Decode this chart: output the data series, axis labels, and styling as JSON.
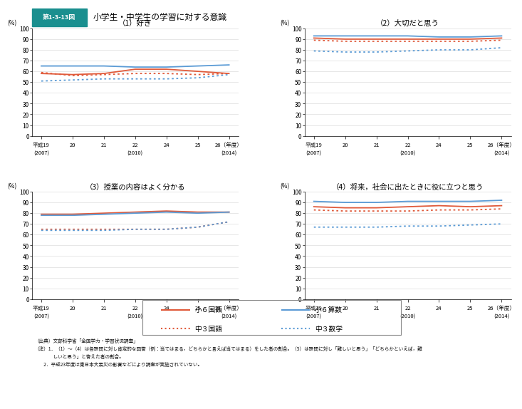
{
  "header_bg": "#1A8F8F",
  "header_text": "第1-3-13図",
  "main_title": "小学生・中学生の学習に対する意識",
  "x_values": [
    0,
    1,
    2,
    3,
    4,
    5,
    6
  ],
  "x_top_labels": [
    "平成19",
    "20",
    "21",
    "22",
    "24",
    "25",
    "26（年度）"
  ],
  "x_bot_labels": [
    "(2007)",
    "",
    "",
    "(2010)",
    "",
    "",
    "(2014)"
  ],
  "subplots": [
    {
      "title": "（1）好き",
      "ylim": [
        0,
        100
      ],
      "yticks": [
        0,
        10,
        20,
        30,
        40,
        50,
        60,
        70,
        80,
        90,
        100
      ],
      "series": {
        "小6国語": [
          58,
          57,
          58,
          62,
          62,
          60,
          58
        ],
        "小6算数": [
          65,
          65,
          65,
          64,
          64,
          65,
          66
        ],
        "中3国語": [
          59,
          56,
          57,
          58,
          58,
          57,
          58
        ],
        "中3数学": [
          51,
          52,
          53,
          53,
          53,
          54,
          57
        ]
      }
    },
    {
      "title": "（2）大切だと思う",
      "ylim": [
        0,
        100
      ],
      "yticks": [
        0,
        10,
        20,
        30,
        40,
        50,
        60,
        70,
        80,
        90,
        100
      ],
      "series": {
        "小6国語": [
          91,
          90,
          90,
          90,
          90,
          90,
          91
        ],
        "小6算数": [
          93,
          93,
          93,
          93,
          92,
          92,
          93
        ],
        "中3国語": [
          89,
          88,
          88,
          88,
          88,
          88,
          89
        ],
        "中3数学": [
          79,
          78,
          78,
          79,
          80,
          80,
          82
        ]
      }
    },
    {
      "title": "（3）授業の内容はよく分かる",
      "ylim": [
        0,
        100
      ],
      "yticks": [
        0,
        10,
        20,
        30,
        40,
        50,
        60,
        70,
        80,
        90,
        100
      ],
      "series": {
        "小6国語": [
          79,
          79,
          80,
          81,
          82,
          81,
          81
        ],
        "小6算数": [
          78,
          78,
          79,
          80,
          81,
          80,
          81
        ],
        "中3国語": [
          65,
          65,
          65,
          65,
          65,
          67,
          72
        ],
        "中3数学": [
          64,
          64,
          64,
          65,
          65,
          67,
          72
        ]
      }
    },
    {
      "title": "（4）将来，社会に出たときに役に立つと思う",
      "ylim": [
        0,
        100
      ],
      "yticks": [
        0,
        10,
        20,
        30,
        40,
        50,
        60,
        70,
        80,
        90,
        100
      ],
      "series": {
        "小6国語": [
          86,
          85,
          85,
          86,
          87,
          86,
          87
        ],
        "小6算数": [
          91,
          90,
          90,
          91,
          91,
          91,
          92
        ],
        "中3国語": [
          83,
          82,
          82,
          82,
          83,
          83,
          84
        ],
        "中3数学": [
          67,
          67,
          67,
          68,
          68,
          69,
          70
        ]
      }
    }
  ],
  "colors": {
    "小6国語": "#E05A3A",
    "小6算数": "#5B9BD5",
    "中3国語": "#E05A3A",
    "中3数学": "#5B9BD5"
  },
  "linestyles": {
    "小6国語": "solid",
    "小6算数": "solid",
    "中3国語": "dotted",
    "中3数学": "dotted"
  },
  "legend_items": [
    {
      "label": "小６国語",
      "color": "#E05A3A",
      "ls": "solid",
      "row": 0,
      "col": 0
    },
    {
      "label": "小６算数",
      "color": "#5B9BD5",
      "ls": "solid",
      "row": 0,
      "col": 1
    },
    {
      "label": "中３国語",
      "color": "#E05A3A",
      "ls": "dotted",
      "row": 1,
      "col": 0
    },
    {
      "label": "中３数学",
      "color": "#5B9BD5",
      "ls": "dotted",
      "row": 1,
      "col": 1
    }
  ],
  "footer_lines": [
    "（出典）文部科学省「全国学力・学習状況調査」",
    "（注）1．（1）～（4）は各設問に対し肯定的な回答（例：当てはまる，どちらかと言えば当てはまる）をした者の割合。（5）は設問に対し「難しいと思う」「どちらかといえば，難",
    "　　　　しいと思う」と答えた者の割合。",
    "　　2．平成23年度は東日本大震災の影響などにより調査が実施されていない。"
  ]
}
